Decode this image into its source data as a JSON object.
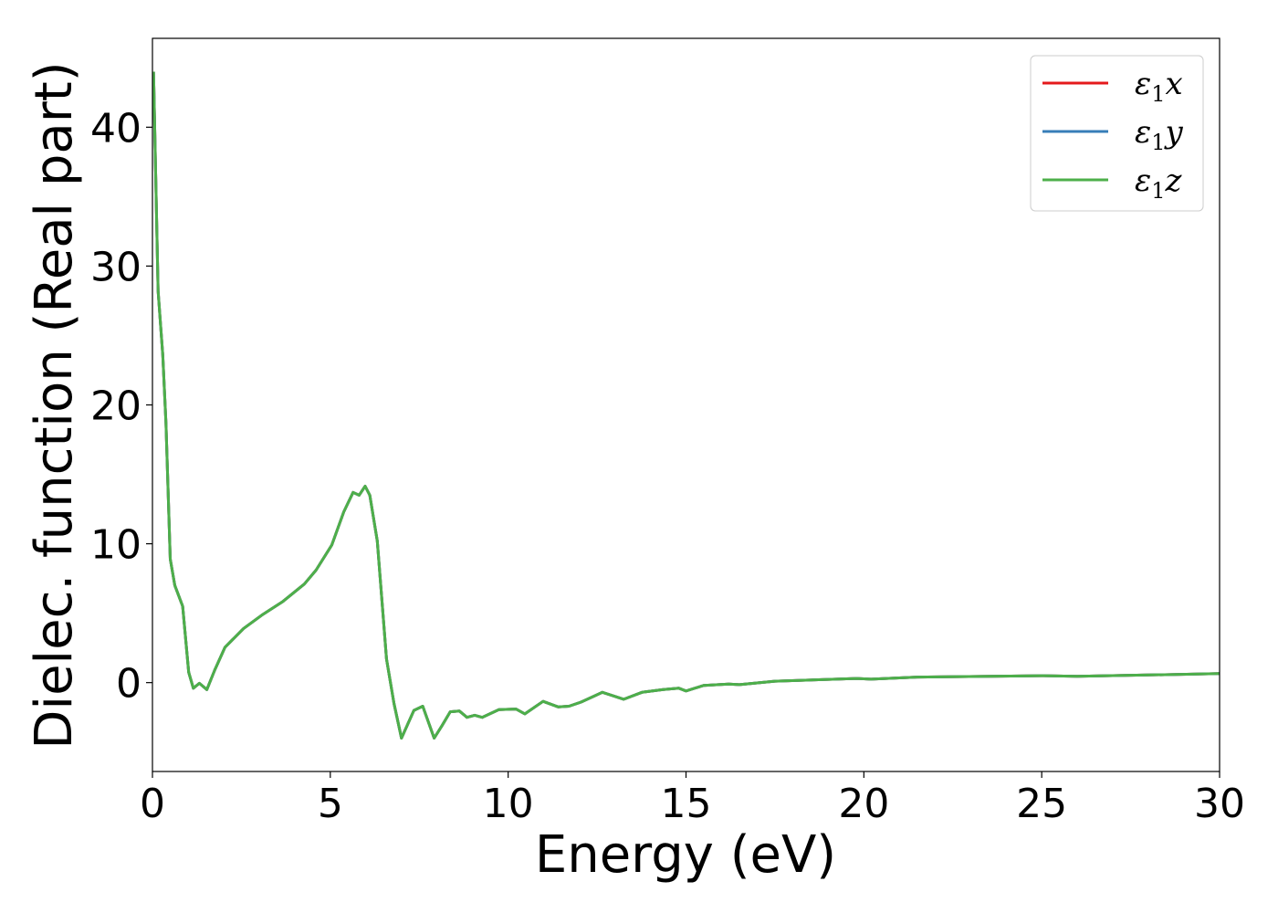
{
  "chart_data": {
    "type": "line",
    "title": "",
    "xlabel": "Energy (eV)",
    "ylabel": "Dielec. function (Real part)",
    "xlim": [
      0,
      30
    ],
    "ylim": [
      -6.4,
      46.4
    ],
    "xticks": [
      0,
      5,
      10,
      15,
      20,
      25,
      30
    ],
    "yticks": [
      0,
      10,
      20,
      30,
      40
    ],
    "grid": false,
    "legend_placement": "top-right",
    "x": [
      0.03,
      0.16,
      0.29,
      0.38,
      0.5,
      0.63,
      0.85,
      1.02,
      1.15,
      1.32,
      1.53,
      1.75,
      2.04,
      2.56,
      3.07,
      3.67,
      4.27,
      4.6,
      5.04,
      5.38,
      5.64,
      5.81,
      5.98,
      6.11,
      6.32,
      6.58,
      6.79,
      7.0,
      7.35,
      7.6,
      7.92,
      8.14,
      8.37,
      8.63,
      8.84,
      9.06,
      9.27,
      9.74,
      10.22,
      10.47,
      10.98,
      11.41,
      11.71,
      12.05,
      12.65,
      13.25,
      13.76,
      14.36,
      14.8,
      15.0,
      15.5,
      16.2,
      16.5,
      17.5,
      19.8,
      20.2,
      21.5,
      25,
      26,
      30
    ],
    "series": [
      {
        "name": "ε1x",
        "label_base": "ε",
        "label_sub": "1",
        "label_axis": "x",
        "color": "#e41a1c",
        "values": [
          44.0,
          28.2,
          23.6,
          18.7,
          8.9,
          7.0,
          5.5,
          0.75,
          -0.4,
          -0.05,
          -0.5,
          0.9,
          2.55,
          3.9,
          4.85,
          5.85,
          7.1,
          8.1,
          9.9,
          12.3,
          13.7,
          13.5,
          14.15,
          13.5,
          10.2,
          1.7,
          -1.5,
          -4.0,
          -2.0,
          -1.7,
          -4.0,
          -3.1,
          -2.1,
          -2.05,
          -2.5,
          -2.35,
          -2.5,
          -1.95,
          -1.9,
          -2.25,
          -1.35,
          -1.75,
          -1.7,
          -1.4,
          -0.7,
          -1.2,
          -0.7,
          -0.5,
          -0.4,
          -0.6,
          -0.2,
          -0.1,
          -0.15,
          0.1,
          0.3,
          0.25,
          0.4,
          0.5,
          0.45,
          0.65
        ]
      },
      {
        "name": "ε1y",
        "label_base": "ε",
        "label_sub": "1",
        "label_axis": "y",
        "color": "#377eb8",
        "values": [
          44.0,
          28.2,
          23.6,
          18.7,
          8.9,
          7.0,
          5.5,
          0.75,
          -0.4,
          -0.05,
          -0.5,
          0.9,
          2.55,
          3.9,
          4.85,
          5.85,
          7.1,
          8.1,
          9.9,
          12.3,
          13.7,
          13.5,
          14.15,
          13.5,
          10.2,
          1.7,
          -1.5,
          -4.0,
          -2.0,
          -1.7,
          -4.0,
          -3.1,
          -2.1,
          -2.05,
          -2.5,
          -2.35,
          -2.5,
          -1.95,
          -1.9,
          -2.25,
          -1.35,
          -1.75,
          -1.7,
          -1.4,
          -0.7,
          -1.2,
          -0.7,
          -0.5,
          -0.4,
          -0.6,
          -0.2,
          -0.1,
          -0.15,
          0.1,
          0.3,
          0.25,
          0.4,
          0.5,
          0.45,
          0.65
        ]
      },
      {
        "name": "ε1z",
        "label_base": "ε",
        "label_sub": "1",
        "label_axis": "z",
        "color": "#4daf4a",
        "values": [
          44.0,
          28.2,
          23.6,
          18.7,
          8.9,
          7.0,
          5.5,
          0.75,
          -0.4,
          -0.05,
          -0.5,
          0.9,
          2.55,
          3.9,
          4.85,
          5.85,
          7.1,
          8.1,
          9.9,
          12.3,
          13.7,
          13.5,
          14.15,
          13.5,
          10.2,
          1.7,
          -1.5,
          -4.0,
          -2.0,
          -1.7,
          -4.0,
          -3.1,
          -2.1,
          -2.05,
          -2.5,
          -2.35,
          -2.5,
          -1.95,
          -1.9,
          -2.25,
          -1.35,
          -1.75,
          -1.7,
          -1.4,
          -0.7,
          -1.2,
          -0.7,
          -0.5,
          -0.4,
          -0.6,
          -0.2,
          -0.1,
          -0.15,
          0.1,
          0.3,
          0.25,
          0.4,
          0.5,
          0.45,
          0.65
        ]
      }
    ]
  }
}
